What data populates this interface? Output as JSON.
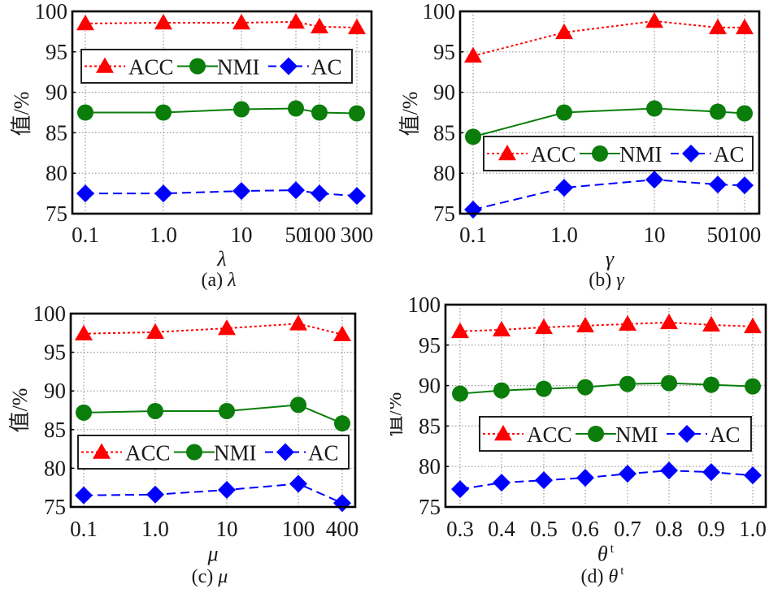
{
  "colors": {
    "ACC": "#ff0000",
    "NMI": "#0a7d0a",
    "AC": "#0000ff",
    "axis": "#000000",
    "grid": "#9a9a9a"
  },
  "legend": [
    {
      "key": "ACC",
      "label": "ACC",
      "marker": "triangle",
      "line": "dotted"
    },
    {
      "key": "NMI",
      "label": "NMI",
      "marker": "circle",
      "line": "solid"
    },
    {
      "key": "AC",
      "label": "AC",
      "marker": "diamond",
      "line": "dashed"
    }
  ],
  "chart_data": [
    {
      "id": "a",
      "type": "line",
      "caption_prefix": "(a)",
      "caption_symbol": "λ",
      "xlabel": "λ",
      "xlabel_sup": "",
      "ylabel": "值/%",
      "categories": [
        "0.1",
        "1.0",
        "10",
        "50",
        "100",
        "300"
      ],
      "ylim": [
        75,
        100
      ],
      "yticks": [
        75,
        80,
        85,
        90,
        95,
        100
      ],
      "grid": true,
      "legend_position": "upper-middle",
      "series": [
        {
          "name": "ACC",
          "values": [
            98.5,
            98.6,
            98.6,
            98.7,
            98.1,
            98.0
          ]
        },
        {
          "name": "NMI",
          "values": [
            87.5,
            87.5,
            87.9,
            88.0,
            87.5,
            87.4
          ]
        },
        {
          "name": "AC",
          "values": [
            77.5,
            77.5,
            77.8,
            77.9,
            77.5,
            77.2
          ]
        }
      ]
    },
    {
      "id": "b",
      "type": "line",
      "caption_prefix": "(b)",
      "caption_symbol": "γ",
      "xlabel": "γ",
      "xlabel_sup": "",
      "ylabel": "值/%",
      "categories": [
        "0.1",
        "1.0",
        "10",
        "50",
        "100"
      ],
      "ylim": [
        75,
        100
      ],
      "yticks": [
        75,
        80,
        85,
        90,
        95,
        100
      ],
      "grid": true,
      "legend_position": "center-right",
      "series": [
        {
          "name": "ACC",
          "values": [
            94.5,
            97.4,
            98.8,
            98.0,
            98.0
          ]
        },
        {
          "name": "NMI",
          "values": [
            84.5,
            87.5,
            88.0,
            87.6,
            87.4
          ]
        },
        {
          "name": "AC",
          "values": [
            75.5,
            78.2,
            79.2,
            78.6,
            78.5
          ]
        }
      ]
    },
    {
      "id": "c",
      "type": "line",
      "caption_prefix": "(c)",
      "caption_symbol": "μ",
      "xlabel": "μ",
      "xlabel_sup": "",
      "ylabel": "值/%",
      "categories": [
        "0.1",
        "1.0",
        "10",
        "100",
        "400"
      ],
      "ylim": [
        75,
        100
      ],
      "yticks": [
        75,
        80,
        85,
        90,
        95,
        100
      ],
      "grid": true,
      "legend_position": "center",
      "series": [
        {
          "name": "ACC",
          "values": [
            97.4,
            97.6,
            98.1,
            98.7,
            97.3
          ]
        },
        {
          "name": "NMI",
          "values": [
            87.2,
            87.4,
            87.4,
            88.2,
            85.8
          ]
        },
        {
          "name": "AC",
          "values": [
            76.5,
            76.6,
            77.2,
            78.0,
            75.5
          ]
        }
      ]
    },
    {
      "id": "d",
      "type": "line",
      "caption_prefix": "(d)",
      "caption_symbol": "θ",
      "caption_sup": "t",
      "xlabel": "θ",
      "xlabel_sup": "t",
      "ylabel": "值/%",
      "categories": [
        "0.3",
        "0.4",
        "0.5",
        "0.6",
        "0.7",
        "0.8",
        "0.9",
        "1.0"
      ],
      "ylim": [
        75,
        100
      ],
      "yticks": [
        75,
        80,
        85,
        90,
        95,
        100
      ],
      "grid": true,
      "legend_position": "center-right",
      "series": [
        {
          "name": "ACC",
          "values": [
            96.7,
            96.9,
            97.2,
            97.4,
            97.6,
            97.8,
            97.5,
            97.3
          ]
        },
        {
          "name": "NMI",
          "values": [
            89.0,
            89.4,
            89.6,
            89.8,
            90.2,
            90.3,
            90.1,
            89.9
          ]
        },
        {
          "name": "AC",
          "values": [
            77.2,
            78.0,
            78.3,
            78.6,
            79.1,
            79.5,
            79.3,
            78.9
          ]
        }
      ]
    }
  ]
}
